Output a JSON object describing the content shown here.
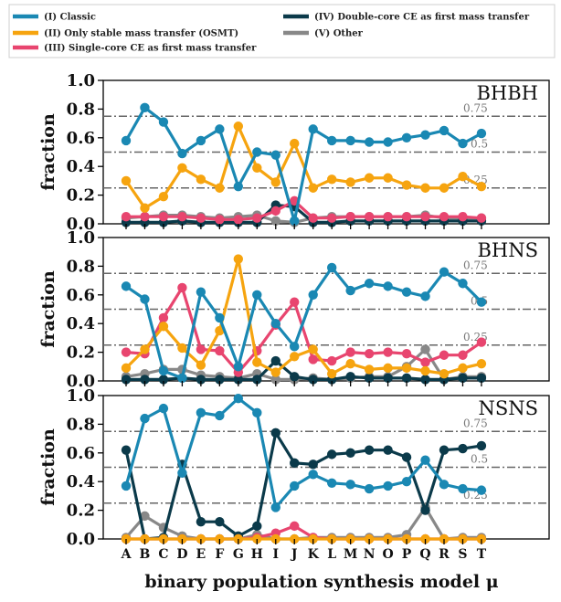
{
  "legend": [
    {
      "label": "(I) Classic",
      "color": "#1a88b3"
    },
    {
      "label": "(II) Only stable mass transfer (OSMT)",
      "color": "#f6a40f"
    },
    {
      "label": "(III) Single-core CE as first mass transfer",
      "color": "#e8456f"
    },
    {
      "label": "(IV) Double-core CE as first mass transfer",
      "color": "#0b3a4a"
    },
    {
      "label": "(V) Other",
      "color": "#888888"
    }
  ],
  "chart_data": {
    "type": "line",
    "xlabel": "binary population synthesis model μ",
    "ylabel": "fraction",
    "categories": [
      "A",
      "B",
      "C",
      "D",
      "E",
      "F",
      "G",
      "H",
      "I",
      "J",
      "K",
      "L",
      "M",
      "N",
      "O",
      "P",
      "Q",
      "R",
      "S",
      "T"
    ],
    "ylim": [
      0,
      1
    ],
    "yticks": [
      "0.0",
      "0.2",
      "0.4",
      "0.6",
      "0.8",
      "1.0"
    ],
    "reference_lines": [
      {
        "value": 0.75,
        "label": "0.75"
      },
      {
        "value": 0.5,
        "label": "0.5"
      },
      {
        "value": 0.25,
        "label": "0.25"
      }
    ],
    "panels": [
      {
        "title": "BHBH",
        "series": [
          {
            "name": "(I) Classic",
            "values": [
              0.58,
              0.81,
              0.71,
              0.49,
              0.58,
              0.66,
              0.26,
              0.5,
              0.48,
              0.02,
              0.66,
              0.58,
              0.58,
              0.57,
              0.57,
              0.6,
              0.62,
              0.65,
              0.56,
              0.63
            ]
          },
          {
            "name": "(II) Only stable mass transfer (OSMT)",
            "values": [
              0.3,
              0.11,
              0.19,
              0.39,
              0.31,
              0.25,
              0.68,
              0.39,
              0.29,
              0.56,
              0.25,
              0.31,
              0.29,
              0.32,
              0.32,
              0.27,
              0.25,
              0.25,
              0.33,
              0.26
            ]
          },
          {
            "name": "(III) Single-core CE as first mass transfer",
            "values": [
              0.05,
              0.05,
              0.05,
              0.05,
              0.04,
              0.03,
              0.03,
              0.04,
              0.09,
              0.16,
              0.04,
              0.04,
              0.05,
              0.05,
              0.05,
              0.05,
              0.05,
              0.05,
              0.05,
              0.04
            ]
          },
          {
            "name": "(IV) Double-core CE as first mass transfer",
            "values": [
              0.01,
              0.01,
              0.01,
              0.02,
              0.01,
              0.01,
              0.01,
              0.01,
              0.13,
              0.12,
              0.01,
              0.01,
              0.02,
              0.02,
              0.02,
              0.02,
              0.02,
              0.02,
              0.02,
              0.02
            ]
          },
          {
            "name": "(V) Other",
            "values": [
              0.04,
              0.05,
              0.06,
              0.06,
              0.05,
              0.04,
              0.05,
              0.06,
              0.02,
              0.01,
              0.04,
              0.05,
              0.05,
              0.05,
              0.05,
              0.05,
              0.06,
              0.04,
              0.04,
              0.04
            ]
          }
        ]
      },
      {
        "title": "BHNS",
        "series": [
          {
            "name": "(I) Classic",
            "values": [
              0.66,
              0.57,
              0.07,
              0.02,
              0.62,
              0.44,
              0.1,
              0.6,
              0.4,
              0.24,
              0.6,
              0.79,
              0.63,
              0.68,
              0.66,
              0.62,
              0.59,
              0.76,
              0.68,
              0.55
            ]
          },
          {
            "name": "(II) Only stable mass transfer (OSMT)",
            "values": [
              0.09,
              0.22,
              0.38,
              0.23,
              0.11,
              0.35,
              0.85,
              0.13,
              0.06,
              0.17,
              0.22,
              0.05,
              0.12,
              0.08,
              0.09,
              0.09,
              0.07,
              0.05,
              0.09,
              0.12
            ]
          },
          {
            "name": "(III) Single-core CE as first mass transfer",
            "values": [
              0.2,
              0.19,
              0.44,
              0.65,
              0.22,
              0.21,
              0.06,
              0.21,
              0.39,
              0.55,
              0.15,
              0.14,
              0.2,
              0.19,
              0.2,
              0.19,
              0.13,
              0.18,
              0.18,
              0.27
            ]
          },
          {
            "name": "(IV) Double-core CE as first mass transfer",
            "values": [
              0.01,
              0.01,
              0.01,
              0.02,
              0.01,
              0.01,
              0.01,
              0.01,
              0.14,
              0.03,
              0.01,
              0.01,
              0.03,
              0.02,
              0.02,
              0.02,
              0.01,
              0.01,
              0.02,
              0.02
            ]
          },
          {
            "name": "(V) Other",
            "values": [
              0.03,
              0.05,
              0.08,
              0.08,
              0.04,
              0.03,
              0.02,
              0.05,
              0.01,
              0.01,
              0.02,
              0.01,
              0.02,
              0.03,
              0.03,
              0.1,
              0.22,
              0.01,
              0.03,
              0.03
            ]
          }
        ]
      },
      {
        "title": "NSNS",
        "series": [
          {
            "name": "(I) Classic",
            "values": [
              0.37,
              0.84,
              0.91,
              0.46,
              0.88,
              0.86,
              0.98,
              0.88,
              0.22,
              0.37,
              0.45,
              0.39,
              0.38,
              0.35,
              0.37,
              0.4,
              0.55,
              0.38,
              0.35,
              0.34
            ]
          },
          {
            "name": "(II) Only stable mass transfer (OSMT)",
            "values": [
              0.0,
              0.0,
              0.0,
              0.0,
              0.0,
              0.0,
              0.0,
              0.0,
              0.0,
              0.0,
              0.0,
              0.0,
              0.0,
              0.0,
              0.0,
              0.0,
              0.0,
              0.0,
              0.0,
              0.0
            ]
          },
          {
            "name": "(III) Single-core CE as first mass transfer",
            "values": [
              0.0,
              0.0,
              0.0,
              0.0,
              0.0,
              0.0,
              0.0,
              0.01,
              0.04,
              0.09,
              0.01,
              0.0,
              0.0,
              0.0,
              0.0,
              0.0,
              0.0,
              0.0,
              0.0,
              0.0
            ]
          },
          {
            "name": "(IV) Double-core CE as first mass transfer",
            "values": [
              0.62,
              0.0,
              0.01,
              0.52,
              0.12,
              0.12,
              0.02,
              0.09,
              0.74,
              0.53,
              0.52,
              0.59,
              0.6,
              0.62,
              0.62,
              0.57,
              0.2,
              0.62,
              0.63,
              0.65
            ]
          },
          {
            "name": "(V) Other",
            "values": [
              0.01,
              0.16,
              0.08,
              0.02,
              0.0,
              0.0,
              0.0,
              0.03,
              0.0,
              0.0,
              0.01,
              0.01,
              0.01,
              0.01,
              0.01,
              0.03,
              0.22,
              0.0,
              0.01,
              0.01
            ]
          }
        ]
      }
    ]
  }
}
